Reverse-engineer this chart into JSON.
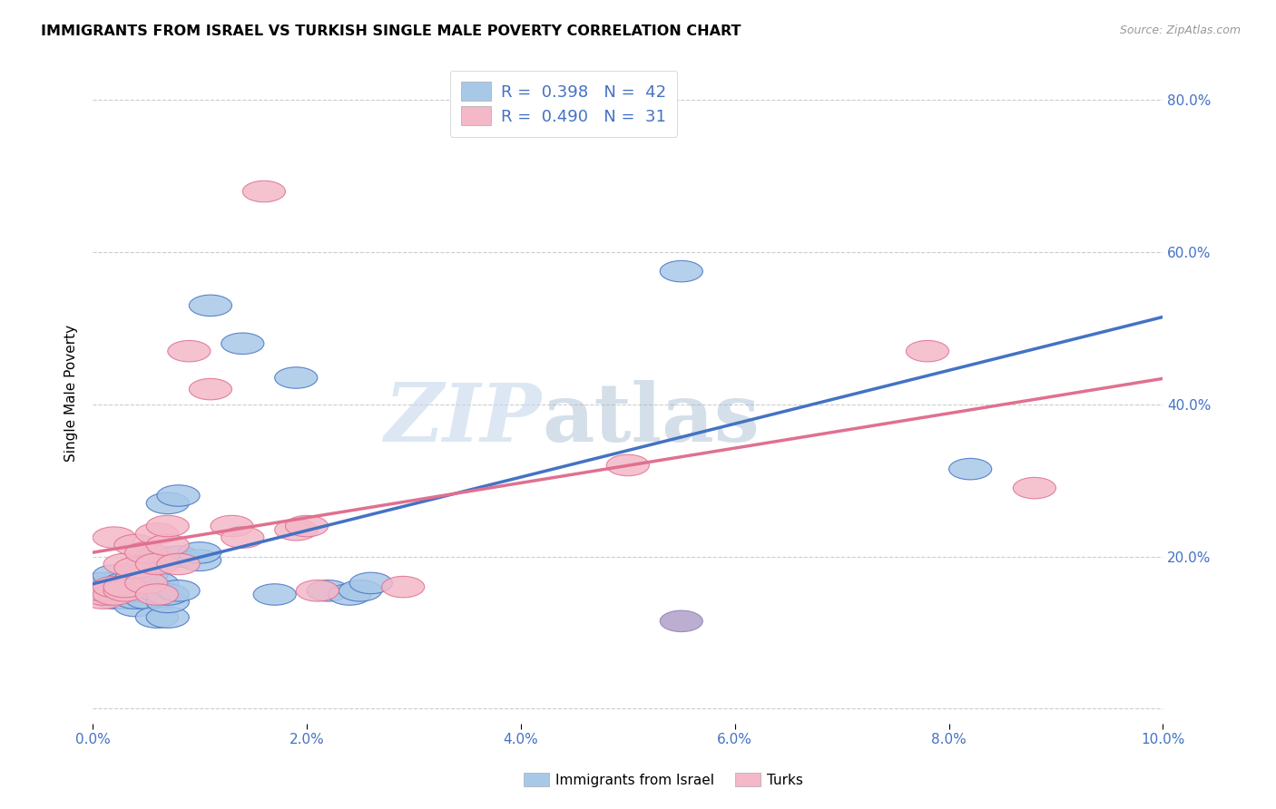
{
  "title": "IMMIGRANTS FROM ISRAEL VS TURKISH SINGLE MALE POVERTY CORRELATION CHART",
  "source": "Source: ZipAtlas.com",
  "ylabel": "Single Male Poverty",
  "xlim": [
    0.0,
    0.1
  ],
  "ylim": [
    -0.02,
    0.85
  ],
  "legend_blue_R": "0.398",
  "legend_blue_N": "42",
  "legend_pink_R": "0.490",
  "legend_pink_N": "31",
  "blue_color": "#A8C8E8",
  "pink_color": "#F4B8C8",
  "line_blue": "#4472C4",
  "line_pink": "#E07090",
  "text_blue": "#4472C4",
  "grid_color": "#CCCCCC",
  "blue_scatter": [
    [
      0.001,
      0.155
    ],
    [
      0.001,
      0.16
    ],
    [
      0.001,
      0.165
    ],
    [
      0.002,
      0.145
    ],
    [
      0.002,
      0.155
    ],
    [
      0.002,
      0.16
    ],
    [
      0.002,
      0.175
    ],
    [
      0.003,
      0.145
    ],
    [
      0.003,
      0.15
    ],
    [
      0.003,
      0.155
    ],
    [
      0.003,
      0.165
    ],
    [
      0.004,
      0.135
    ],
    [
      0.004,
      0.145
    ],
    [
      0.004,
      0.155
    ],
    [
      0.004,
      0.17
    ],
    [
      0.005,
      0.145
    ],
    [
      0.005,
      0.16
    ],
    [
      0.005,
      0.175
    ],
    [
      0.005,
      0.185
    ],
    [
      0.006,
      0.12
    ],
    [
      0.006,
      0.155
    ],
    [
      0.006,
      0.165
    ],
    [
      0.006,
      0.2
    ],
    [
      0.007,
      0.12
    ],
    [
      0.007,
      0.14
    ],
    [
      0.007,
      0.15
    ],
    [
      0.007,
      0.27
    ],
    [
      0.008,
      0.155
    ],
    [
      0.008,
      0.2
    ],
    [
      0.008,
      0.28
    ],
    [
      0.01,
      0.195
    ],
    [
      0.01,
      0.205
    ],
    [
      0.011,
      0.53
    ],
    [
      0.014,
      0.48
    ],
    [
      0.017,
      0.15
    ],
    [
      0.019,
      0.435
    ],
    [
      0.022,
      0.155
    ],
    [
      0.024,
      0.15
    ],
    [
      0.025,
      0.155
    ],
    [
      0.026,
      0.165
    ],
    [
      0.055,
      0.575
    ],
    [
      0.082,
      0.315
    ]
  ],
  "pink_scatter": [
    [
      0.001,
      0.145
    ],
    [
      0.001,
      0.15
    ],
    [
      0.001,
      0.155
    ],
    [
      0.002,
      0.15
    ],
    [
      0.002,
      0.16
    ],
    [
      0.002,
      0.225
    ],
    [
      0.003,
      0.155
    ],
    [
      0.003,
      0.16
    ],
    [
      0.003,
      0.19
    ],
    [
      0.004,
      0.185
    ],
    [
      0.004,
      0.215
    ],
    [
      0.005,
      0.165
    ],
    [
      0.005,
      0.205
    ],
    [
      0.006,
      0.15
    ],
    [
      0.006,
      0.19
    ],
    [
      0.006,
      0.23
    ],
    [
      0.007,
      0.215
    ],
    [
      0.007,
      0.24
    ],
    [
      0.008,
      0.19
    ],
    [
      0.009,
      0.47
    ],
    [
      0.011,
      0.42
    ],
    [
      0.013,
      0.24
    ],
    [
      0.014,
      0.225
    ],
    [
      0.016,
      0.68
    ],
    [
      0.019,
      0.235
    ],
    [
      0.02,
      0.24
    ],
    [
      0.021,
      0.155
    ],
    [
      0.029,
      0.16
    ],
    [
      0.05,
      0.32
    ],
    [
      0.078,
      0.47
    ],
    [
      0.088,
      0.29
    ]
  ],
  "purple_point": [
    0.055,
    0.115
  ],
  "watermark_zip": "ZIP",
  "watermark_atlas": "atlas",
  "background_color": "#FFFFFF"
}
